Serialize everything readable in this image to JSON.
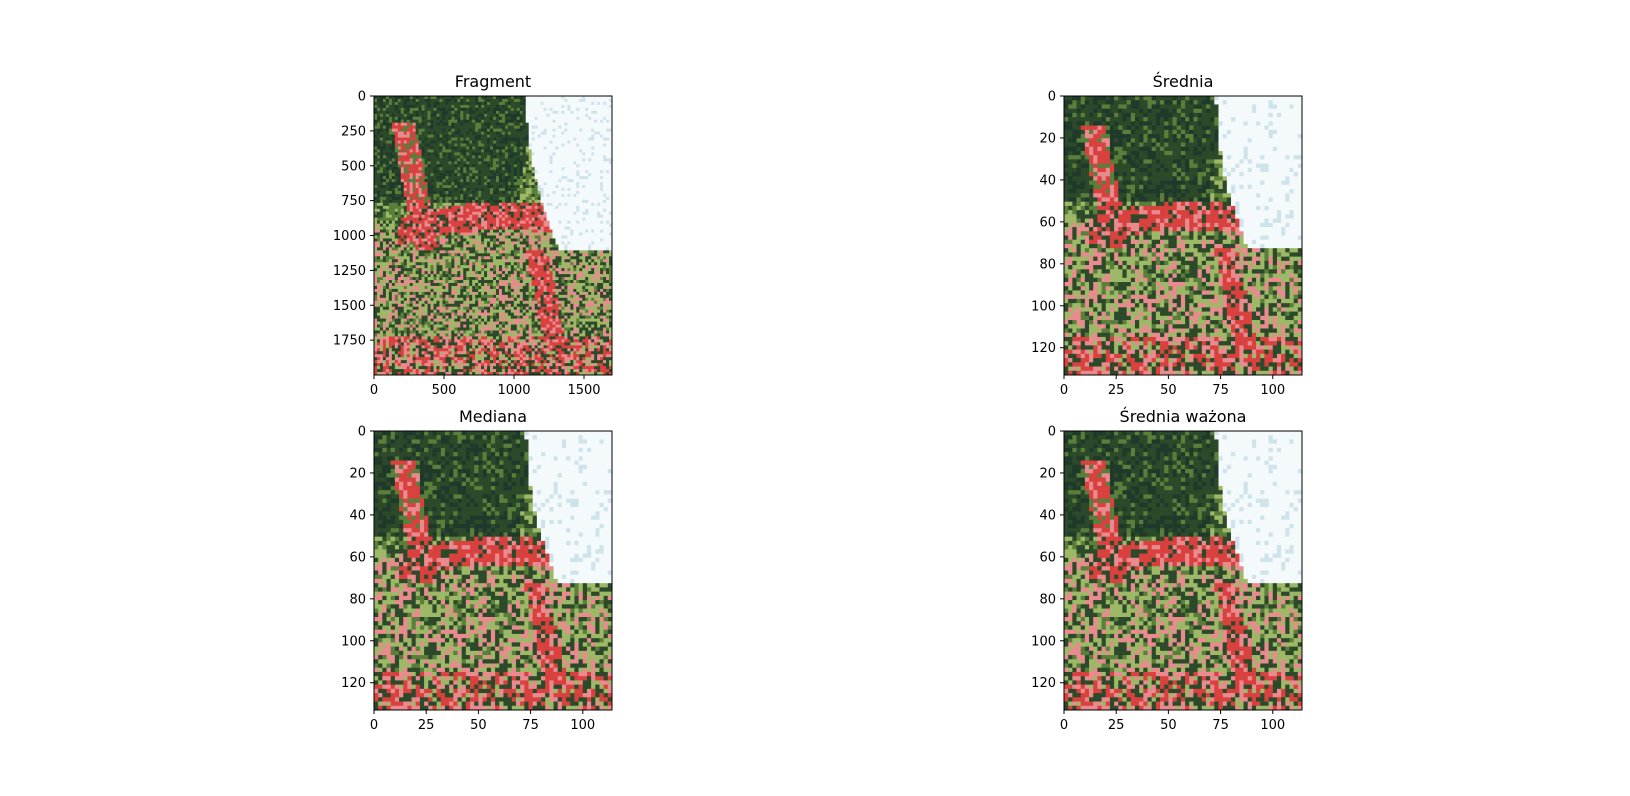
{
  "figure": {
    "background": "#ffffff"
  },
  "chart_data": [
    {
      "type": "image",
      "title": "Fragment",
      "xlim": [
        0,
        1700
      ],
      "ylim": [
        2000,
        0
      ],
      "xticks": [
        0,
        500,
        1000,
        1500
      ],
      "yticks": [
        0,
        250,
        500,
        750,
        1000,
        1250,
        1500,
        1750
      ],
      "pixelated": false
    },
    {
      "type": "image",
      "title": "Średnia",
      "xlim": [
        0,
        114
      ],
      "ylim": [
        133,
        0
      ],
      "xticks": [
        0,
        25,
        50,
        75,
        100
      ],
      "yticks": [
        0,
        20,
        40,
        60,
        80,
        100,
        120
      ],
      "pixelated": true
    },
    {
      "type": "image",
      "title": "Mediana",
      "xlim": [
        0,
        114
      ],
      "ylim": [
        133,
        0
      ],
      "xticks": [
        0,
        25,
        50,
        75,
        100
      ],
      "yticks": [
        0,
        20,
        40,
        60,
        80,
        100,
        120
      ],
      "pixelated": true
    },
    {
      "type": "image",
      "title": "Średnia ważona",
      "xlim": [
        0,
        114
      ],
      "ylim": [
        133,
        0
      ],
      "xticks": [
        0,
        25,
        50,
        75,
        100
      ],
      "yticks": [
        0,
        20,
        40,
        60,
        80,
        100,
        120
      ],
      "pixelated": true
    }
  ],
  "image_palette": {
    "sky": "#f4f9fb",
    "sky_tint": "#cfe4ea",
    "foliage_dark": "#2c4a2a",
    "foliage": "#5a7f3a",
    "foliage_light": "#9db866",
    "flower_red": "#d9413f",
    "flower_pink": "#e98a8f"
  }
}
